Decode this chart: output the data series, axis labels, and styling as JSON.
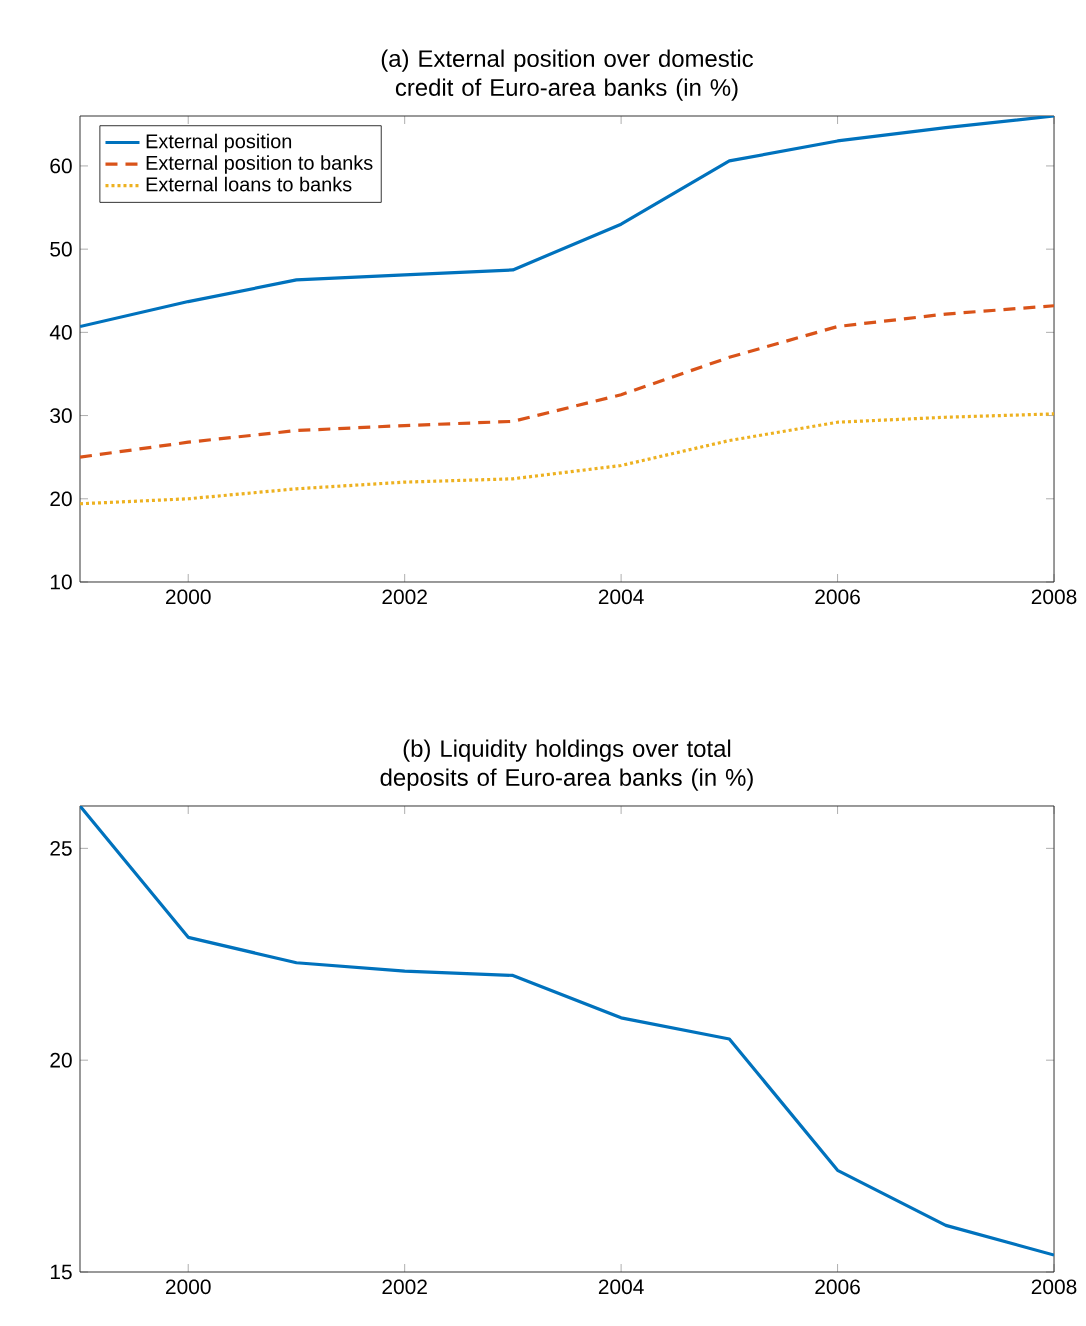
{
  "chart_data": [
    {
      "type": "line",
      "title": "(a) External position over domestic credit of Euro-area banks (in %)",
      "x": [
        1999,
        2000,
        2001,
        2002,
        2003,
        2004,
        2005,
        2006,
        2007,
        2008
      ],
      "xlim": [
        1999,
        2008
      ],
      "xticks": [
        2000,
        2002,
        2004,
        2006,
        2008
      ],
      "ylim": [
        10,
        66
      ],
      "yticks": [
        10,
        20,
        30,
        40,
        50,
        60
      ],
      "legend": "top left",
      "series": [
        {
          "name": "External position",
          "color": "#0072bd",
          "line_style": "solid",
          "values": [
            40.7,
            43.7,
            46.3,
            46.9,
            47.5,
            53,
            60.6,
            63,
            64.6,
            66
          ]
        },
        {
          "name": "External position to banks",
          "color": "#d95319",
          "line_style": "dashed",
          "values": [
            25,
            26.8,
            28.2,
            28.8,
            29.3,
            32.5,
            37,
            40.7,
            42.2,
            43.2
          ]
        },
        {
          "name": "External loans to banks",
          "color": "#edb120",
          "line_style": "dotted",
          "values": [
            19.4,
            20,
            21.2,
            22,
            22.4,
            24,
            27,
            29.2,
            29.8,
            30.2
          ]
        }
      ]
    },
    {
      "type": "line",
      "title": "(b) Liquidity holdings over total deposits of Euro-area banks (in %)",
      "x": [
        1999,
        2000,
        2001,
        2002,
        2003,
        2004,
        2005,
        2006,
        2007,
        2008
      ],
      "xlim": [
        1999,
        2008
      ],
      "xticks": [
        2000,
        2002,
        2004,
        2006,
        2008
      ],
      "ylim": [
        15,
        26
      ],
      "yticks": [
        15,
        20,
        25
      ],
      "series": [
        {
          "color": "#0072bd",
          "line_style": "solid",
          "values": [
            26,
            22.9,
            22.3,
            22.1,
            22.0,
            21.0,
            20.5,
            17.4,
            16.1,
            15.4
          ]
        }
      ]
    }
  ]
}
